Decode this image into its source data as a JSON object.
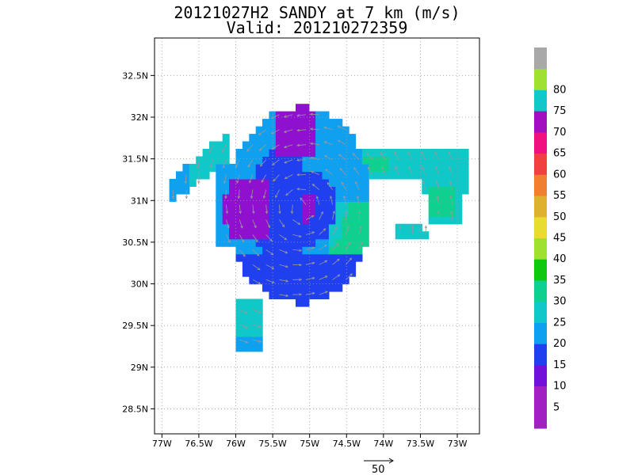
{
  "header": {
    "title": "20121027H2 SANDY at 7 km (m/s)",
    "subtitle": "Valid: 201210272359"
  },
  "map": {
    "lon_range": [
      -77.1,
      -72.7
    ],
    "lat_range": [
      28.2,
      32.95
    ],
    "lon_ticks": [
      {
        "value": -77,
        "label": "77W"
      },
      {
        "value": -76.5,
        "label": "76.5W"
      },
      {
        "value": -76,
        "label": "76W"
      },
      {
        "value": -75.5,
        "label": "75.5W"
      },
      {
        "value": -75,
        "label": "75W"
      },
      {
        "value": -74.5,
        "label": "74.5W"
      },
      {
        "value": -74,
        "label": "74W"
      },
      {
        "value": -73.5,
        "label": "73.5W"
      },
      {
        "value": -73,
        "label": "73W"
      }
    ],
    "lat_ticks": [
      {
        "value": 28.5,
        "label": "28.5N"
      },
      {
        "value": 29,
        "label": "29N"
      },
      {
        "value": 29.5,
        "label": "29.5N"
      },
      {
        "value": 30,
        "label": "30N"
      },
      {
        "value": 30.5,
        "label": "30.5N"
      },
      {
        "value": 31,
        "label": "31N"
      },
      {
        "value": 31.5,
        "label": "31.5N"
      },
      {
        "value": 32,
        "label": "32N"
      },
      {
        "value": 32.5,
        "label": "32.5N"
      }
    ],
    "grid": "dotted",
    "center": {
      "lon": -75.1,
      "lat": 30.92
    }
  },
  "colorbar": {
    "levels": [
      {
        "label": "",
        "color": "#a020c0"
      },
      {
        "label": "5",
        "color": "#a020c0"
      },
      {
        "label": "10",
        "color": "#7010d8"
      },
      {
        "label": "15",
        "color": "#2040f0"
      },
      {
        "label": "20",
        "color": "#10a0f0"
      },
      {
        "label": "25",
        "color": "#10c8c8"
      },
      {
        "label": "30",
        "color": "#10d090"
      },
      {
        "label": "35",
        "color": "#10c810"
      },
      {
        "label": "40",
        "color": "#a0e030"
      },
      {
        "label": "45",
        "color": "#e8dc30"
      },
      {
        "label": "50",
        "color": "#e0b030"
      },
      {
        "label": "55",
        "color": "#f08030"
      },
      {
        "label": "60",
        "color": "#f04040"
      },
      {
        "label": "65",
        "color": "#f01080"
      },
      {
        "label": "70",
        "color": "#a010c0"
      },
      {
        "label": "75",
        "color": "#10c8c8"
      },
      {
        "label": "80",
        "color": "#a0e030"
      },
      {
        "label": "",
        "color": "#a8a8a8"
      }
    ]
  },
  "vector_reference": {
    "label": "50",
    "value": 50,
    "unit": "m/s"
  },
  "field_colors": {
    "inner_core": "#9010d0",
    "ring": "#2040f0",
    "outer": "#10a0f0",
    "bands": "#10c8c8",
    "peak": "#10d090",
    "vector": "#999999"
  }
}
